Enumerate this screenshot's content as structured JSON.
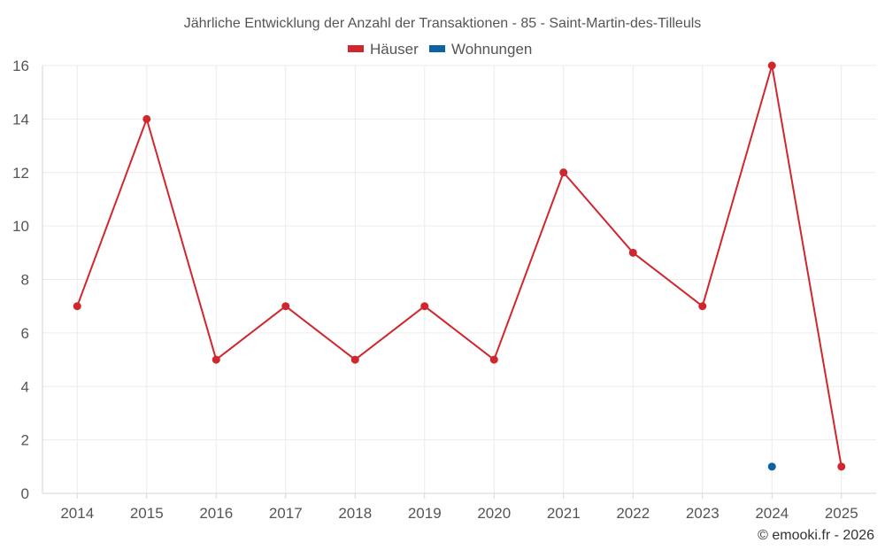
{
  "chart_data": {
    "type": "line",
    "title": "Jährliche Entwicklung der Anzahl der Transaktionen - 85 - Saint-Martin-des-Tilleuls",
    "xlabel": "",
    "ylabel": "",
    "categories": [
      "2014",
      "2015",
      "2016",
      "2017",
      "2018",
      "2019",
      "2020",
      "2021",
      "2022",
      "2023",
      "2024",
      "2025"
    ],
    "ylim": [
      0,
      16
    ],
    "yticks": [
      "0",
      "2",
      "4",
      "6",
      "8",
      "10",
      "12",
      "14",
      "16"
    ],
    "grid": true,
    "legend_position": "top-center",
    "series": [
      {
        "name": "Häuser",
        "color": "#d0262d",
        "values": [
          7,
          14,
          5,
          7,
          5,
          7,
          5,
          12,
          9,
          7,
          16,
          1
        ]
      },
      {
        "name": "Wohnungen",
        "color": "#0b63a3",
        "values": [
          null,
          null,
          null,
          null,
          null,
          null,
          null,
          null,
          null,
          null,
          1,
          null
        ]
      }
    ]
  },
  "footer": {
    "credit": "© emooki.fr - 2026"
  }
}
